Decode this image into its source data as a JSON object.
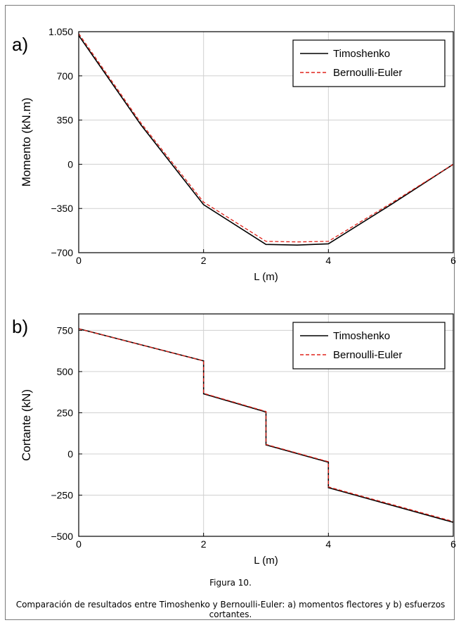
{
  "figure": {
    "caption_title": "Figura 10.",
    "caption_body": "Comparación de resultados entre Timoshenko y Bernoulli-Euler: a) momentos flectores y b) esfuerzos cortantes."
  },
  "colors": {
    "timoshenko": "#000000",
    "bernoulli": "#e0241b",
    "grid": "#d0d0d0"
  },
  "chart_data": [
    {
      "type": "line",
      "panel_label": "a)",
      "xlabel": "L (m)",
      "ylabel": "Momento (kN.m)",
      "xlim": [
        0,
        6
      ],
      "ylim": [
        -700,
        1050
      ],
      "xticks": [
        0,
        2,
        4,
        6
      ],
      "xtick_labels": [
        "0",
        "2",
        "4",
        "6"
      ],
      "yticks": [
        1050,
        700,
        350,
        0,
        -350,
        -700
      ],
      "ytick_labels": [
        "1.050",
        "700",
        "350",
        "0",
        "−350",
        "−700"
      ],
      "grid": true,
      "legend_position": "top-right",
      "series": [
        {
          "name": "Timoshenko",
          "style": "solid",
          "x": [
            0,
            1,
            2,
            3,
            3.5,
            4,
            5,
            6
          ],
          "y": [
            1020,
            310,
            -320,
            -635,
            -640,
            -630,
            -320,
            0
          ]
        },
        {
          "name": "Bernoulli-Euler",
          "style": "dashed",
          "x": [
            0,
            1,
            2,
            3,
            3.5,
            4,
            5,
            6
          ],
          "y": [
            1035,
            325,
            -300,
            -610,
            -615,
            -610,
            -310,
            0
          ]
        }
      ]
    },
    {
      "type": "line",
      "panel_label": "b)",
      "xlabel": "L (m)",
      "ylabel": "Cortante (kN)",
      "xlim": [
        0,
        6
      ],
      "ylim": [
        -500,
        850
      ],
      "xticks": [
        0,
        2,
        4,
        6
      ],
      "xtick_labels": [
        "0",
        "2",
        "4",
        "6"
      ],
      "yticks": [
        750,
        500,
        250,
        0,
        -250,
        -500
      ],
      "ytick_labels": [
        "750",
        "500",
        "250",
        "0",
        "−250",
        "−500"
      ],
      "grid": true,
      "legend_position": "top-right",
      "series": [
        {
          "name": "Timoshenko",
          "style": "solid",
          "x": [
            0,
            2,
            2,
            3,
            3,
            4,
            4,
            6
          ],
          "y": [
            760,
            565,
            365,
            255,
            55,
            -50,
            -205,
            -415
          ]
        },
        {
          "name": "Bernoulli-Euler",
          "style": "dashed",
          "x": [
            0,
            2,
            2,
            3,
            3,
            4,
            4,
            6
          ],
          "y": [
            760,
            565,
            368,
            258,
            58,
            -47,
            -200,
            -410
          ]
        }
      ]
    }
  ]
}
